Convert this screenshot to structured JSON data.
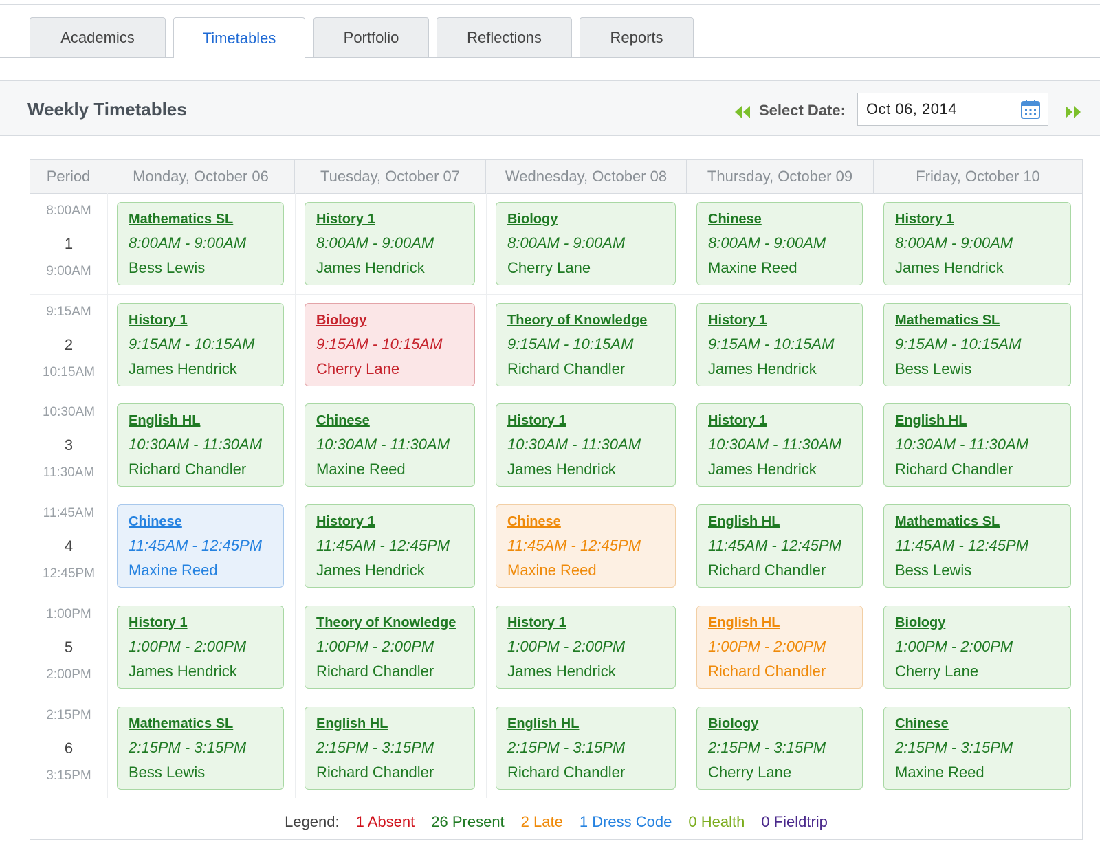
{
  "tabs": [
    {
      "label": "Academics",
      "active": false
    },
    {
      "label": "Timetables",
      "active": true
    },
    {
      "label": "Portfolio",
      "active": false
    },
    {
      "label": "Reflections",
      "active": false
    },
    {
      "label": "Reports",
      "active": false
    }
  ],
  "header": {
    "title": "Weekly Timetables",
    "select_date_label": "Select Date:",
    "date_value": "Oct 06, 2014"
  },
  "table": {
    "period_header": "Period",
    "days": [
      "Monday, October 06",
      "Tuesday, October 07",
      "Wednesday, October 08",
      "Thursday, October 09",
      "Friday, October 10"
    ],
    "periods": [
      {
        "number": "1",
        "start": "8:00AM",
        "end": "9:00AM"
      },
      {
        "number": "2",
        "start": "9:15AM",
        "end": "10:15AM"
      },
      {
        "number": "3",
        "start": "10:30AM",
        "end": "11:30AM"
      },
      {
        "number": "4",
        "start": "11:45AM",
        "end": "12:45PM"
      },
      {
        "number": "5",
        "start": "1:00PM",
        "end": "2:00PM"
      },
      {
        "number": "6",
        "start": "2:15PM",
        "end": "3:15PM"
      }
    ],
    "rows": [
      [
        {
          "subject": "Mathematics SL",
          "time": "8:00AM - 9:00AM",
          "teacher": "Bess Lewis",
          "status": "present"
        },
        {
          "subject": "History 1",
          "time": "8:00AM - 9:00AM",
          "teacher": "James Hendrick",
          "status": "present"
        },
        {
          "subject": "Biology",
          "time": "8:00AM - 9:00AM",
          "teacher": "Cherry Lane",
          "status": "present"
        },
        {
          "subject": "Chinese",
          "time": "8:00AM - 9:00AM",
          "teacher": "Maxine Reed",
          "status": "present"
        },
        {
          "subject": "History 1",
          "time": "8:00AM - 9:00AM",
          "teacher": "James Hendrick",
          "status": "present"
        }
      ],
      [
        {
          "subject": "History 1",
          "time": "9:15AM - 10:15AM",
          "teacher": "James Hendrick",
          "status": "present"
        },
        {
          "subject": "Biology",
          "time": "9:15AM - 10:15AM",
          "teacher": "Cherry Lane",
          "status": "absent"
        },
        {
          "subject": "Theory of Knowledge",
          "time": "9:15AM - 10:15AM",
          "teacher": "Richard Chandler",
          "status": "present"
        },
        {
          "subject": "History 1",
          "time": "9:15AM - 10:15AM",
          "teacher": "James Hendrick",
          "status": "present"
        },
        {
          "subject": "Mathematics SL",
          "time": "9:15AM - 10:15AM",
          "teacher": "Bess Lewis",
          "status": "present"
        }
      ],
      [
        {
          "subject": "English HL",
          "time": "10:30AM - 11:30AM",
          "teacher": "Richard Chandler",
          "status": "present"
        },
        {
          "subject": "Chinese",
          "time": "10:30AM - 11:30AM",
          "teacher": "Maxine Reed",
          "status": "present"
        },
        {
          "subject": "History 1",
          "time": "10:30AM - 11:30AM",
          "teacher": "James Hendrick",
          "status": "present"
        },
        {
          "subject": "History 1",
          "time": "10:30AM - 11:30AM",
          "teacher": "James Hendrick",
          "status": "present"
        },
        {
          "subject": "English HL",
          "time": "10:30AM - 11:30AM",
          "teacher": "Richard Chandler",
          "status": "present"
        }
      ],
      [
        {
          "subject": "Chinese",
          "time": "11:45AM - 12:45PM",
          "teacher": "Maxine Reed",
          "status": "dress"
        },
        {
          "subject": "History 1",
          "time": "11:45AM - 12:45PM",
          "teacher": "James Hendrick",
          "status": "present"
        },
        {
          "subject": "Chinese",
          "time": "11:45AM - 12:45PM",
          "teacher": "Maxine Reed",
          "status": "late"
        },
        {
          "subject": "English HL",
          "time": "11:45AM - 12:45PM",
          "teacher": "Richard Chandler",
          "status": "present"
        },
        {
          "subject": "Mathematics SL",
          "time": "11:45AM - 12:45PM",
          "teacher": "Bess Lewis",
          "status": "present"
        }
      ],
      [
        {
          "subject": "History 1",
          "time": "1:00PM - 2:00PM",
          "teacher": "James Hendrick",
          "status": "present"
        },
        {
          "subject": "Theory of Knowledge",
          "time": "1:00PM - 2:00PM",
          "teacher": "Richard Chandler",
          "status": "present"
        },
        {
          "subject": "History 1",
          "time": "1:00PM - 2:00PM",
          "teacher": "James Hendrick",
          "status": "present"
        },
        {
          "subject": "English HL",
          "time": "1:00PM - 2:00PM",
          "teacher": "Richard Chandler",
          "status": "late"
        },
        {
          "subject": "Biology",
          "time": "1:00PM - 2:00PM",
          "teacher": "Cherry Lane",
          "status": "present"
        }
      ],
      [
        {
          "subject": "Mathematics SL",
          "time": "2:15PM - 3:15PM",
          "teacher": "Bess Lewis",
          "status": "present"
        },
        {
          "subject": "English HL",
          "time": "2:15PM - 3:15PM",
          "teacher": "Richard Chandler",
          "status": "present"
        },
        {
          "subject": "English HL",
          "time": "2:15PM - 3:15PM",
          "teacher": "Richard Chandler",
          "status": "present"
        },
        {
          "subject": "Biology",
          "time": "2:15PM - 3:15PM",
          "teacher": "Cherry Lane",
          "status": "present"
        },
        {
          "subject": "Chinese",
          "time": "2:15PM - 3:15PM",
          "teacher": "Maxine Reed",
          "status": "present"
        }
      ]
    ]
  },
  "legend": {
    "label": "Legend:",
    "items": [
      {
        "text": "1 Absent",
        "color": "#d0111b"
      },
      {
        "text": "26 Present",
        "color": "#1f7a23"
      },
      {
        "text": "2 Late",
        "color": "#ef8a0a"
      },
      {
        "text": "1 Dress Code",
        "color": "#2582e0"
      },
      {
        "text": "0 Health",
        "color": "#7cad1e"
      },
      {
        "text": "0 Fieldtrip",
        "color": "#4b2a8c"
      }
    ]
  },
  "colors": {
    "accent": "#1f6ad4",
    "nav_arrow": "#7cc02c",
    "present": "#1f7a23",
    "absent": "#c6232c",
    "late": "#ef8a0a",
    "dress_code": "#2582e0"
  },
  "icons": {
    "prev_week": "double-chevron-left-icon",
    "next_week": "double-chevron-right-icon",
    "calendar": "calendar-icon"
  }
}
